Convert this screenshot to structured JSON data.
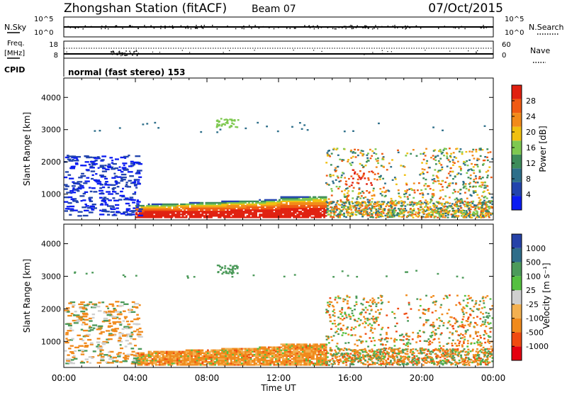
{
  "header": {
    "station": "Zhongshan Station (fitACF)",
    "beam": "Beam 07",
    "date": "07/Oct/2015"
  },
  "status_panels": {
    "nsky_label": "N.Sky",
    "nsky_ticks": [
      "10^5",
      "10^0"
    ],
    "nsearch_label": "N.Search",
    "nsearch_ticks": [
      "10^5",
      "10^0"
    ],
    "freq_label_1": "Freq.",
    "freq_label_2": "[MHz]",
    "freq_ticks": [
      "18",
      "8"
    ],
    "nave_label": "Nave",
    "nave_ticks": [
      "60",
      "0"
    ],
    "cpid_label": "CPID",
    "cpid_text": "normal (fast stereo) 153"
  },
  "colors": {
    "power": [
      "#0b1cf2",
      "#2244ad",
      "#2e6f8a",
      "#3d8c5a",
      "#7ec850",
      "#f0c010",
      "#f28a1a",
      "#f05a12",
      "#e02010"
    ],
    "velocity": [
      "#e40010",
      "#f04a10",
      "#f08a1c",
      "#f3b050",
      "#cfcfcf",
      "#55c040",
      "#4c9a5a",
      "#2f6d8a",
      "#2642a8"
    ]
  },
  "chart_data": [
    {
      "type": "heatmap",
      "name": "power",
      "ylabel": "Slant Range [km]",
      "yticks": [
        "1000",
        "2000",
        "3000",
        "4000"
      ],
      "ylim": [
        200,
        4600
      ],
      "xlabel": "Time UT",
      "xticks": [
        "00:00",
        "04:00",
        "08:00",
        "12:00",
        "16:00",
        "20:00",
        "00:00"
      ],
      "xlim_hours": [
        0,
        24
      ],
      "colorbar_label": "Power [dB]",
      "colorbar_ticks": [
        "4",
        "8",
        "12",
        "16",
        "20",
        "24",
        "28"
      ],
      "colorbar_range": [
        0,
        32
      ]
    },
    {
      "type": "heatmap",
      "name": "velocity",
      "ylabel": "Slant Range [km]",
      "yticks": [
        "1000",
        "2000",
        "3000",
        "4000"
      ],
      "ylim": [
        200,
        4600
      ],
      "xlabel": "Time UT",
      "xticks": [
        "00:00",
        "04:00",
        "08:00",
        "12:00",
        "16:00",
        "20:00",
        "00:00"
      ],
      "xlim_hours": [
        0,
        24
      ],
      "colorbar_label": "Velocity [m s⁻¹]",
      "colorbar_ticks": [
        "-1000",
        "-500",
        "-100",
        "-25",
        "25",
        "100",
        "500",
        "1000"
      ]
    }
  ]
}
